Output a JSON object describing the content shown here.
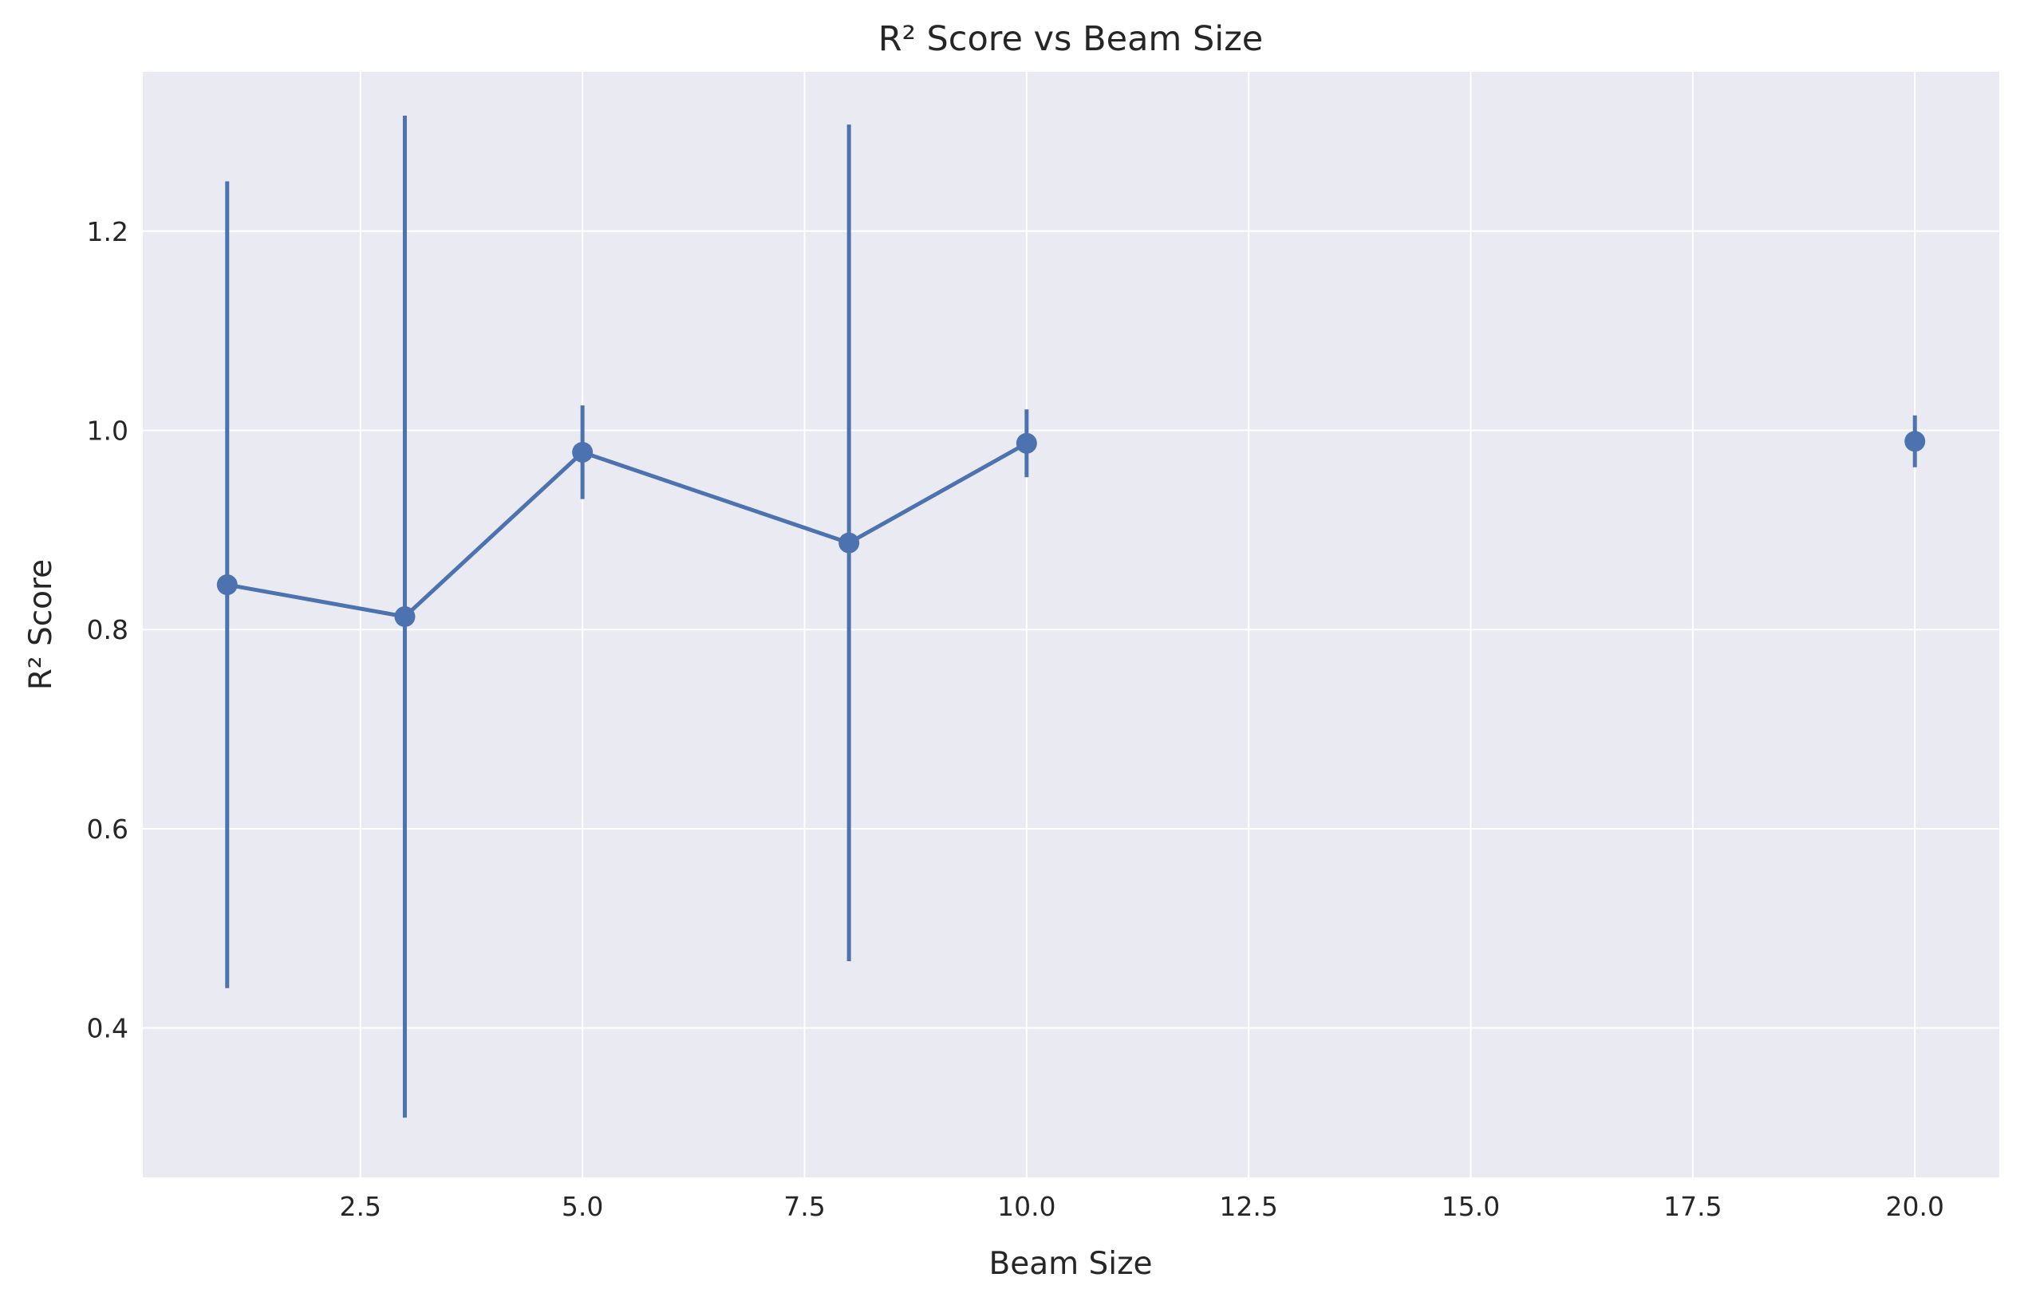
{
  "chart_data": {
    "type": "line",
    "title": "R² Score vs Beam Size",
    "xlabel": "Beam Size",
    "ylabel": "R² Score",
    "xlim": [
      0.05,
      20.95
    ],
    "ylim": [
      0.25,
      1.36
    ],
    "xticks": [
      2.5,
      5.0,
      7.5,
      10.0,
      12.5,
      15.0,
      17.5,
      20.0
    ],
    "xtick_labels": [
      "2.5",
      "5.0",
      "7.5",
      "10.0",
      "12.5",
      "15.0",
      "17.5",
      "20.0"
    ],
    "yticks": [
      0.4,
      0.6,
      0.8,
      1.0,
      1.2
    ],
    "ytick_labels": [
      "0.4",
      "0.6",
      "0.8",
      "1.0",
      "1.2"
    ],
    "grid": true,
    "series": [
      {
        "color": "#4c72b0",
        "points": [
          {
            "x": 1,
            "y": 0.845,
            "yerr": 0.405
          },
          {
            "x": 3,
            "y": 0.813,
            "yerr": 0.503
          },
          {
            "x": 5,
            "y": 0.978,
            "yerr": 0.047
          },
          {
            "x": 8,
            "y": 0.887,
            "yerr": 0.42
          },
          {
            "x": 10,
            "y": 0.987,
            "yerr": 0.034
          },
          {
            "x": 20,
            "y": 0.989,
            "yerr": 0.026
          }
        ],
        "line_segments": [
          [
            0,
            1,
            2,
            3,
            4
          ]
        ]
      }
    ]
  }
}
